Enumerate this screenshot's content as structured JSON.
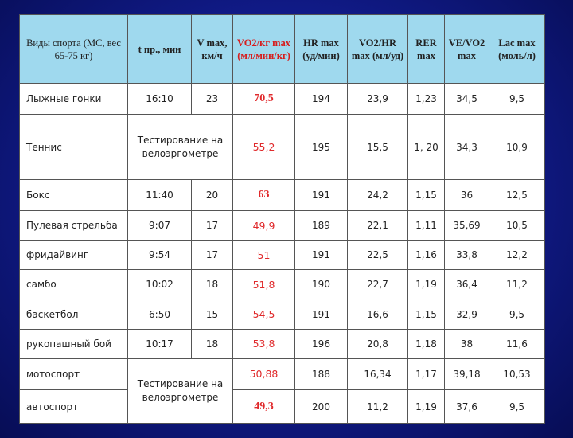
{
  "columns": [
    "Виды спорта (МС, вес 65-75 кг)",
    "t пр., мин",
    "V max, км/ч",
    "VO2/кг max (мл/мин/кг)",
    "HR max (уд/мин)",
    "VO2/HR max (мл/уд)",
    "RER max",
    "VE/VO2 max",
    "Lac max (моль/л)"
  ],
  "note_text": "Тестирование на велоэргометре",
  "rows": [
    {
      "sport": "Лыжные гонки",
      "t": "16:10",
      "v": "23",
      "vo2": "70,5",
      "vo2_bold": true,
      "hr": "194",
      "vo2hr": "23,9",
      "rer": "1,23",
      "vevo2": "34,5",
      "lac": "9,5"
    },
    {
      "sport": "Теннис",
      "note": true,
      "vo2": "55,2",
      "vo2_bold": false,
      "hr": "195",
      "vo2hr": "15,5",
      "rer": "1, 20",
      "vevo2": "34,3",
      "lac": "10,9"
    },
    {
      "sport": " Бокс",
      "t": "11:40",
      "v": "20",
      "vo2": "63",
      "vo2_bold": true,
      "hr": "191",
      "vo2hr": "24,2",
      "rer": "1,15",
      "vevo2": "36",
      "lac": "12,5"
    },
    {
      "sport": "Пулевая стрельба",
      "t": "9:07",
      "v": "17",
      "vo2": "49,9",
      "vo2_bold": false,
      "hr": "189",
      "vo2hr": "22,1",
      "rer": "1,11",
      "vevo2": "35,69",
      "lac": "10,5"
    },
    {
      "sport": "фридайвинг",
      "t": "9:54",
      "v": "17",
      "vo2": "51",
      "vo2_bold": false,
      "hr": "191",
      "vo2hr": "22,5",
      "rer": "1,16",
      "vevo2": "33,8",
      "lac": "12,2"
    },
    {
      "sport": "самбо",
      "t": "10:02",
      "v": "18",
      "vo2": "51,8",
      "vo2_bold": false,
      "hr": "190",
      "vo2hr": "22,7",
      "rer": "1,19",
      "vevo2": "36,4",
      "lac": "11,2"
    },
    {
      "sport": "баскетбол",
      "t": "6:50",
      "v": "15",
      "vo2": "54,5",
      "vo2_bold": false,
      "hr": "191",
      "vo2hr": "16,6",
      "rer": "1,15",
      "vevo2": "32,9",
      "lac": "9,5"
    },
    {
      "sport": "рукопашный бой",
      "t": "10:17",
      "v": "18",
      "vo2": "53,8",
      "vo2_bold": false,
      "hr": "196",
      "vo2hr": "20,8",
      "rer": "1,18",
      "vevo2": "38",
      "lac": "11,6"
    },
    {
      "sport": "мотоспорт",
      "note_start": true,
      "vo2": "50,88",
      "vo2_bold": false,
      "hr": "188",
      "vo2hr": "16,34",
      "rer": "1,17",
      "vevo2": "39,18",
      "lac": "10,53"
    },
    {
      "sport": "автоспорт",
      "note_cont": true,
      "vo2": "49,3",
      "vo2_bold": true,
      "hr": "200",
      "vo2hr": "11,2",
      "rer": "1,19",
      "vevo2": "37,6",
      "lac": "9,5"
    }
  ]
}
